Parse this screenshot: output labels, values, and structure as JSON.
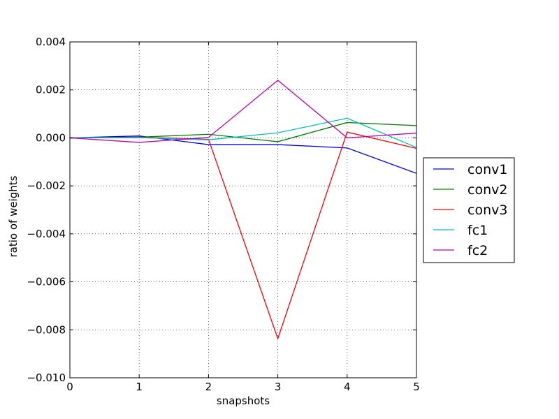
{
  "chart_data": {
    "type": "line",
    "title": "",
    "xlabel": "snapshots",
    "ylabel": "ratio of weights",
    "xlim": [
      0,
      5
    ],
    "ylim": [
      -0.01,
      0.004
    ],
    "x": [
      0,
      1,
      2,
      3,
      4,
      5
    ],
    "x_ticks": [
      "0",
      "1",
      "2",
      "3",
      "4",
      "5"
    ],
    "y_tick_values": [
      0.004,
      0.002,
      0.0,
      -0.002,
      -0.004,
      -0.006,
      -0.008,
      -0.01
    ],
    "y_ticks": [
      "0.004",
      "0.002",
      "0.000",
      "−0.002",
      "−0.004",
      "−0.006",
      "−0.008",
      "−0.010"
    ],
    "grid": true,
    "legend_position": "right, outside plot",
    "series": [
      {
        "name": "conv1",
        "color": "#0000ff",
        "values": [
          0.0,
          8e-05,
          -0.00028,
          -0.00028,
          -0.00042,
          -0.00148
        ]
      },
      {
        "name": "conv2",
        "color": "#008000",
        "values": [
          0.0,
          3e-05,
          0.00015,
          -0.00016,
          0.00064,
          0.00051
        ]
      },
      {
        "name": "conv3",
        "color": "#ff0000",
        "values": [
          0.0,
          3e-05,
          -6e-05,
          -0.00837,
          0.00024,
          -0.00044
        ]
      },
      {
        "name": "fc1",
        "color": "#00bfbf",
        "values": [
          0.0,
          1e-05,
          -8e-05,
          0.00021,
          0.00082,
          -0.0004
        ]
      },
      {
        "name": "fc2",
        "color": "#bf00bf",
        "values": [
          0.0,
          -0.00019,
          2e-05,
          0.0024,
          0.0,
          0.0002
        ]
      }
    ]
  }
}
